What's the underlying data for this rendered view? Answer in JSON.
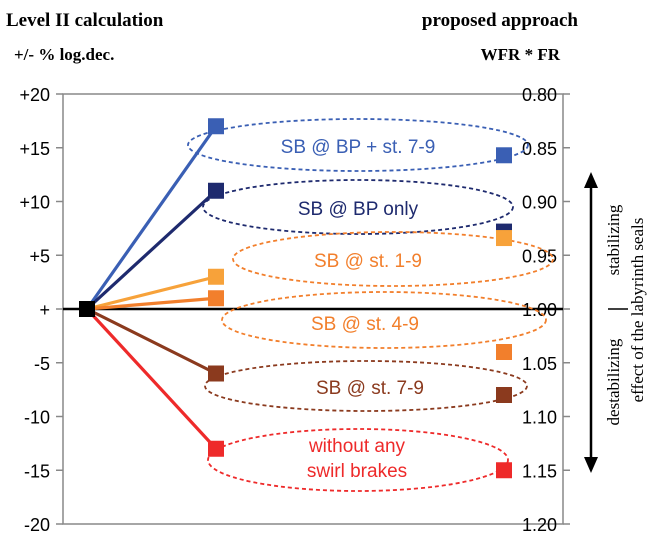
{
  "header": {
    "left_title": "Level  II  calculation",
    "left_subtitle": "+/- % log.dec.",
    "right_title": "proposed approach",
    "right_subtitle": "WFR * FR"
  },
  "chart_data": {
    "type": "line",
    "left_axis": {
      "ylim": [
        -20,
        20
      ],
      "ticks": [
        20,
        15,
        10,
        5,
        0,
        -5,
        -10,
        -15,
        -20
      ],
      "tick_labels": [
        "+20",
        "+15",
        "+10",
        "+5",
        "+",
        "-5",
        "-10",
        "-15",
        "-20"
      ]
    },
    "right_axis": {
      "ylim": [
        1.2,
        0.8
      ],
      "ticks": [
        0.8,
        0.85,
        0.9,
        0.95,
        1.0,
        1.05,
        1.1,
        1.15,
        1.2
      ],
      "tick_labels": [
        "0.80",
        "0.85",
        "0.90",
        "0.95",
        "1.00",
        "1.05",
        "1.10",
        "1.15",
        "1.20"
      ]
    },
    "origin": {
      "left_value": 0,
      "color": "#000000"
    },
    "series": [
      {
        "name": "SB @ BP + st. 7-9",
        "color": "#3a5fb4",
        "level2": 17,
        "proposed": 0.857
      },
      {
        "name": "SB @ BP only",
        "color": "#1e2a6e",
        "level2": 11,
        "proposed": 0.928
      },
      {
        "name": "SB @ st. 1-9",
        "color": "#f7a23a",
        "level2": 3,
        "proposed": 0.934
      },
      {
        "name": "SB @ st. 4-9",
        "color": "#f27f2c",
        "level2": 1,
        "proposed": 1.04
      },
      {
        "name": "SB @ st. 7-9",
        "color": "#8b3a1e",
        "level2": -6,
        "proposed": 1.08
      },
      {
        "name": "without any swirl brakes",
        "color": "#ee2a2a",
        "level2": -13,
        "proposed": 1.15
      }
    ],
    "labels": [
      {
        "lines": [
          "SB @ BP + st. 7-9"
        ],
        "color": "#3a5fb4"
      },
      {
        "lines": [
          "SB @ BP only"
        ],
        "color": "#1e2a6e"
      },
      {
        "lines": [
          "SB @ st. 1-9"
        ],
        "color": "#f27f2c"
      },
      {
        "lines": [
          "SB @ st. 4-9"
        ],
        "color": "#f27f2c"
      },
      {
        "lines": [
          "SB @ st. 7-9"
        ],
        "color": "#8b3a1e"
      },
      {
        "lines": [
          "without any",
          "swirl brakes"
        ],
        "color": "#ee2a2a"
      }
    ],
    "side_annotation": {
      "stabilizing": "stabilizing",
      "destabilizing": "destabilizing",
      "effect": "effect of the labyrinth seals"
    }
  }
}
